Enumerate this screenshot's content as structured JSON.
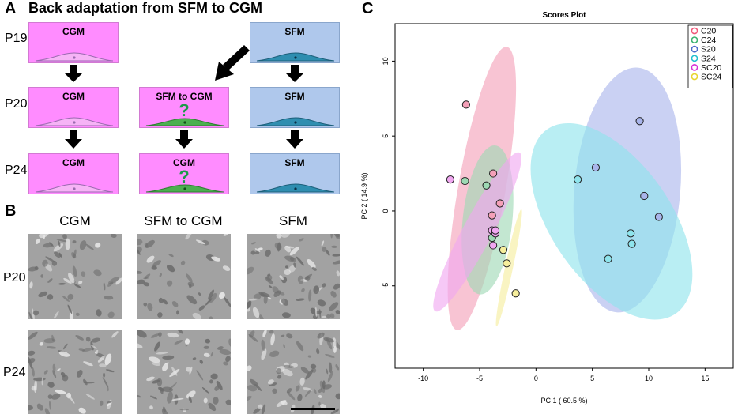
{
  "panel_a": {
    "letter": "A",
    "title": "Back adaptation from SFM to CGM",
    "row_labels": [
      "P19",
      "P20",
      "P24"
    ],
    "boxes": {
      "p19_cgm": "CGM",
      "p19_sfm": "SFM",
      "p20_cgm": "CGM",
      "p20_mid": "SFM to CGM",
      "p20_sfm": "SFM",
      "p24_cgm": "CGM",
      "p24_mid": "CGM",
      "p24_sfm": "SFM"
    },
    "question_mark": "?",
    "colors": {
      "cgm": "#ff8cff",
      "sfm": "#afc8ec",
      "cell_pink": "#f6b3f6",
      "cell_green": "#4caf50",
      "cell_blue": "#2f8eb0"
    }
  },
  "panel_b": {
    "letter": "B",
    "column_headers": [
      "CGM",
      "SFM to CGM",
      "SFM"
    ],
    "row_labels": [
      "P20",
      "P24"
    ]
  },
  "panel_c": {
    "letter": "C"
  },
  "chart_data": {
    "type": "scatter",
    "title": "Scores Plot",
    "xlabel": "PC 1 ( 60.5 %)",
    "ylabel": "PC 2 ( 14.9 %)",
    "xlim": [
      -12.5,
      17.5
    ],
    "ylim": [
      -10.5,
      12.5
    ],
    "xticks": [
      -10,
      -5,
      0,
      5,
      10,
      15
    ],
    "yticks": [
      10,
      5,
      0,
      -5
    ],
    "legend_position": "top-right",
    "series": [
      {
        "name": "C20",
        "color": "#f0597a",
        "fill": "#f4a0b8",
        "points": [
          [
            -6.2,
            7.1
          ],
          [
            -3.8,
            2.5
          ],
          [
            -3.2,
            0.5
          ],
          [
            -3.9,
            -0.3
          ]
        ],
        "ellipse": {
          "cx": -4.8,
          "cy": 1.5,
          "rx": 2.1,
          "ry": 9.6,
          "angle": 10
        }
      },
      {
        "name": "C24",
        "color": "#3cb371",
        "fill": "#9ed9b4",
        "points": [
          [
            -6.3,
            2.0
          ],
          [
            -4.4,
            1.7
          ],
          [
            -3.9,
            -1.8
          ]
        ],
        "ellipse": {
          "cx": -4.3,
          "cy": -0.6,
          "rx": 2.2,
          "ry": 5.0,
          "angle": 6
        }
      },
      {
        "name": "S20",
        "color": "#4b6ccc",
        "fill": "#a9b5eb",
        "points": [
          [
            9.2,
            6.0
          ],
          [
            5.3,
            2.9
          ],
          [
            9.6,
            1.0
          ],
          [
            10.9,
            -0.4
          ]
        ],
        "ellipse": {
          "cx": 8.1,
          "cy": 1.4,
          "rx": 4.7,
          "ry": 8.2,
          "angle": 5
        }
      },
      {
        "name": "S24",
        "color": "#22c0d0",
        "fill": "#8ee4ec",
        "points": [
          [
            3.7,
            2.1
          ],
          [
            8.4,
            -1.5
          ],
          [
            8.5,
            -2.2
          ],
          [
            6.4,
            -3.2
          ]
        ],
        "ellipse": {
          "cx": 6.7,
          "cy": -0.7,
          "rx": 5.3,
          "ry": 7.5,
          "angle": -35
        }
      },
      {
        "name": "SC20",
        "color": "#d830d8",
        "fill": "#f0a7f0",
        "points": [
          [
            -7.6,
            2.1
          ],
          [
            -3.9,
            -1.3
          ],
          [
            -3.6,
            -1.5
          ],
          [
            -3.6,
            -1.3
          ],
          [
            -3.8,
            -2.3
          ]
        ],
        "ellipse": {
          "cx": -5.2,
          "cy": -1.4,
          "rx": 1.3,
          "ry": 6.0,
          "angle": 28
        }
      },
      {
        "name": "SC24",
        "color": "#e8d530",
        "fill": "#f6ee9c",
        "points": [
          [
            -2.9,
            -2.6
          ],
          [
            -2.6,
            -3.5
          ],
          [
            -1.8,
            -5.5
          ]
        ],
        "ellipse": {
          "cx": -2.4,
          "cy": -3.8,
          "rx": 0.35,
          "ry": 4.0,
          "angle": 12
        }
      }
    ]
  }
}
